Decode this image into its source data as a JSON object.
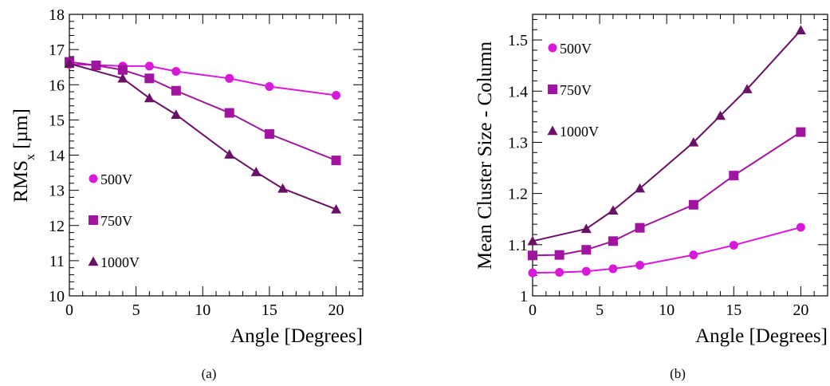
{
  "colors": {
    "500V": "#d919d9",
    "750V": "#a0149f",
    "1000V": "#6a1066",
    "axis": "#000000"
  },
  "chart_data": [
    {
      "type": "line",
      "panel_label": "(a)",
      "ylabel": "RMS",
      "ylabel_sub": "x",
      "ylabel_unit": " [µm]",
      "xlabel": "Angle [Degrees]",
      "xlim": [
        0,
        22
      ],
      "ylim": [
        10,
        18
      ],
      "xticks": [
        0,
        5,
        10,
        15,
        20
      ],
      "yticks": [
        10,
        11,
        12,
        13,
        14,
        15,
        16,
        17,
        18
      ],
      "legend_position": "left-lower",
      "series": [
        {
          "name": "500V",
          "marker": "circle",
          "color": "#d919d9",
          "x": [
            0,
            2,
            4,
            6,
            8,
            12,
            15,
            20
          ],
          "y": [
            16.58,
            16.56,
            16.53,
            16.53,
            16.38,
            16.18,
            15.95,
            15.7
          ]
        },
        {
          "name": "750V",
          "marker": "square",
          "color": "#a0149f",
          "x": [
            0,
            2,
            4,
            6,
            8,
            12,
            15,
            20
          ],
          "y": [
            16.65,
            16.55,
            16.42,
            16.18,
            15.83,
            15.2,
            14.6,
            13.85
          ]
        },
        {
          "name": "1000V",
          "marker": "triangle",
          "color": "#6a1066",
          "x": [
            0,
            4,
            6,
            8,
            12,
            14,
            16,
            20
          ],
          "y": [
            16.6,
            16.18,
            15.62,
            15.15,
            14.02,
            13.52,
            13.05,
            12.46
          ]
        }
      ]
    },
    {
      "type": "line",
      "panel_label": "(b)",
      "ylabel": "Mean Cluster Size - Column",
      "xlabel": "Angle [Degrees]",
      "xlim": [
        0,
        22
      ],
      "ylim": [
        1,
        1.55
      ],
      "xticks": [
        0,
        5,
        10,
        15,
        20
      ],
      "yticks": [
        1,
        1.1,
        1.2,
        1.3,
        1.4,
        1.5
      ],
      "legend_position": "top-left",
      "series": [
        {
          "name": "500V",
          "marker": "circle",
          "color": "#d919d9",
          "x": [
            0,
            2,
            4,
            6,
            8,
            12,
            15,
            20
          ],
          "y": [
            1.045,
            1.046,
            1.048,
            1.053,
            1.06,
            1.08,
            1.099,
            1.134
          ]
        },
        {
          "name": "750V",
          "marker": "square",
          "color": "#a0149f",
          "x": [
            0,
            2,
            4,
            6,
            8,
            12,
            15,
            20
          ],
          "y": [
            1.079,
            1.08,
            1.09,
            1.107,
            1.133,
            1.178,
            1.235,
            1.32
          ]
        },
        {
          "name": "1000V",
          "marker": "triangle",
          "color": "#6a1066",
          "x": [
            0,
            4,
            6,
            8,
            12,
            14,
            16,
            20
          ],
          "y": [
            1.107,
            1.131,
            1.167,
            1.21,
            1.3,
            1.352,
            1.404,
            1.519
          ]
        }
      ]
    }
  ]
}
